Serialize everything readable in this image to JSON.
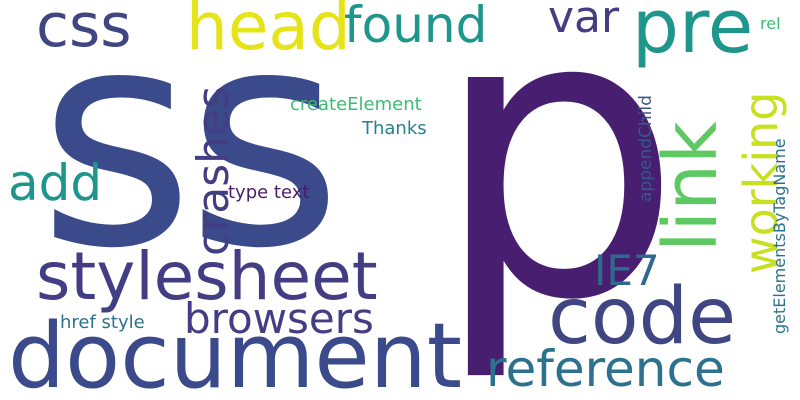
{
  "colors": {
    "background": "#ffffff",
    "indigo": "#3b4a8a",
    "dark_indigo": "#433d83",
    "deep_purple": "#481f70",
    "purple": "#471c6b",
    "slate": "#404682",
    "teal": "#1f968b",
    "teal_dark": "#26828e",
    "blue_teal": "#2c728e",
    "cyan_blue": "#31688e",
    "steel": "#39568c",
    "green": "#5ec962",
    "green_light": "#3dbc74",
    "yellow": "#e6e419",
    "yellow_green": "#c8e020"
  },
  "words": [
    {
      "id": "ss",
      "text": "ss"
    },
    {
      "id": "p",
      "text": "p"
    },
    {
      "id": "document",
      "text": "document"
    },
    {
      "id": "stylesheet",
      "text": "stylesheet"
    },
    {
      "id": "code",
      "text": "code"
    },
    {
      "id": "css",
      "text": "css"
    },
    {
      "id": "head",
      "text": "head"
    },
    {
      "id": "found",
      "text": "found"
    },
    {
      "id": "pre",
      "text": "pre"
    },
    {
      "id": "var",
      "text": "var"
    },
    {
      "id": "link",
      "text": "link"
    },
    {
      "id": "working",
      "text": "working"
    },
    {
      "id": "crashes",
      "text": "crashes"
    },
    {
      "id": "add",
      "text": "add"
    },
    {
      "id": "browsers",
      "text": "browsers"
    },
    {
      "id": "reference",
      "text": "reference"
    },
    {
      "id": "ie7",
      "text": "IE7"
    },
    {
      "id": "createelement",
      "text": "createElement"
    },
    {
      "id": "thanks",
      "text": "Thanks"
    },
    {
      "id": "type_text",
      "text": "type text"
    },
    {
      "id": "href_style",
      "text": "href style"
    },
    {
      "id": "appendchild",
      "text": "appendChild"
    },
    {
      "id": "getelementsbytagname",
      "text": "getElementsByTagName"
    },
    {
      "id": "rel",
      "text": "rel"
    }
  ]
}
